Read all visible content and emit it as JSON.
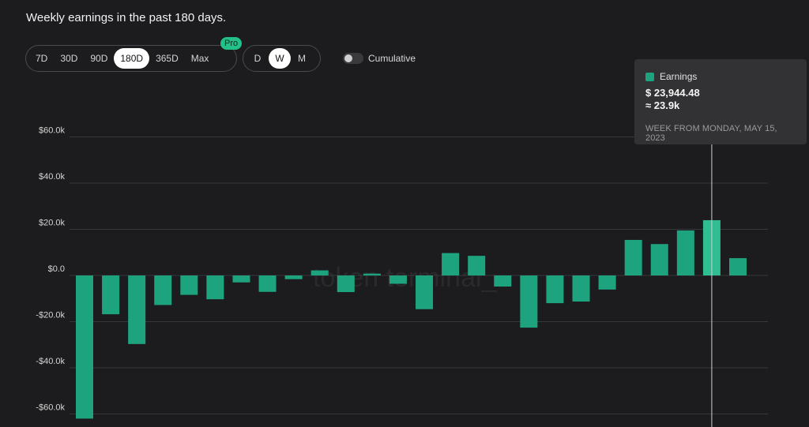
{
  "title": "Weekly earnings in the past 180 days.",
  "range_options": [
    "7D",
    "30D",
    "90D",
    "180D",
    "365D",
    "Max"
  ],
  "range_selected": "180D",
  "pro_badge": "Pro",
  "granularity_options": [
    "D",
    "W",
    "M"
  ],
  "granularity_selected": "W",
  "cumulative": {
    "label": "Cumulative",
    "enabled": false
  },
  "watermark": "token terminal_",
  "colors": {
    "bar": "#1ea37f",
    "bar_highlight": "#2fbd92",
    "background": "#1c1c1e"
  },
  "tooltip": {
    "series": "Earnings",
    "value": "$ 23,944.48",
    "approx": "≈ 23.9k",
    "period": "WEEK FROM MONDAY, MAY 15, 2023"
  },
  "chart_data": {
    "type": "bar",
    "ylim": [
      -65000,
      65000
    ],
    "yticks": [
      {
        "value": 60000,
        "label": "$60.0k"
      },
      {
        "value": 40000,
        "label": "$40.0k"
      },
      {
        "value": 20000,
        "label": "$20.0k"
      },
      {
        "value": 0,
        "label": "$0.0"
      },
      {
        "value": -20000,
        "label": "-$20.0k"
      },
      {
        "value": -40000,
        "label": "-$40.0k"
      },
      {
        "value": -60000,
        "label": "-$60.0k"
      }
    ],
    "grid": true,
    "series": [
      {
        "name": "Earnings",
        "values": [
          -62000,
          -16800,
          -29700,
          -12800,
          -8400,
          -10300,
          -3000,
          -7100,
          -1600,
          2200,
          -7200,
          800,
          -3600,
          -14600,
          9700,
          8500,
          -4800,
          -22600,
          -12000,
          -11300,
          -6100,
          15400,
          13600,
          19500,
          23944.48,
          7500
        ]
      }
    ],
    "highlight_index": 24
  }
}
